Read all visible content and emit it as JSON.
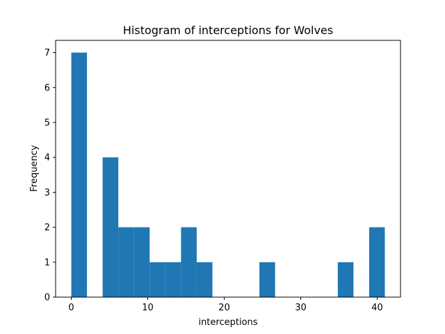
{
  "chart_data": {
    "type": "bar",
    "title": "Histogram of interceptions for Wolves",
    "xlabel": "interceptions",
    "ylabel": "Frequency",
    "bar_color": "#1f77b4",
    "xlim": [
      -2.05,
      43.05
    ],
    "ylim": [
      0,
      7.35
    ],
    "xticks": [
      0,
      10,
      20,
      30,
      40
    ],
    "yticks": [
      0,
      1,
      2,
      3,
      4,
      5,
      6,
      7
    ],
    "bin_edges": [
      0,
      2.05,
      4.1,
      6.15,
      8.2,
      10.25,
      12.3,
      14.35,
      16.4,
      18.45,
      20.5,
      22.55,
      24.6,
      26.65,
      28.7,
      30.75,
      32.8,
      34.85,
      36.9,
      38.95,
      41
    ],
    "counts": [
      7,
      0,
      4,
      2,
      2,
      1,
      1,
      2,
      1,
      0,
      0,
      0,
      1,
      0,
      0,
      0,
      0,
      1,
      0,
      2
    ],
    "grid": false,
    "legend": "none"
  }
}
